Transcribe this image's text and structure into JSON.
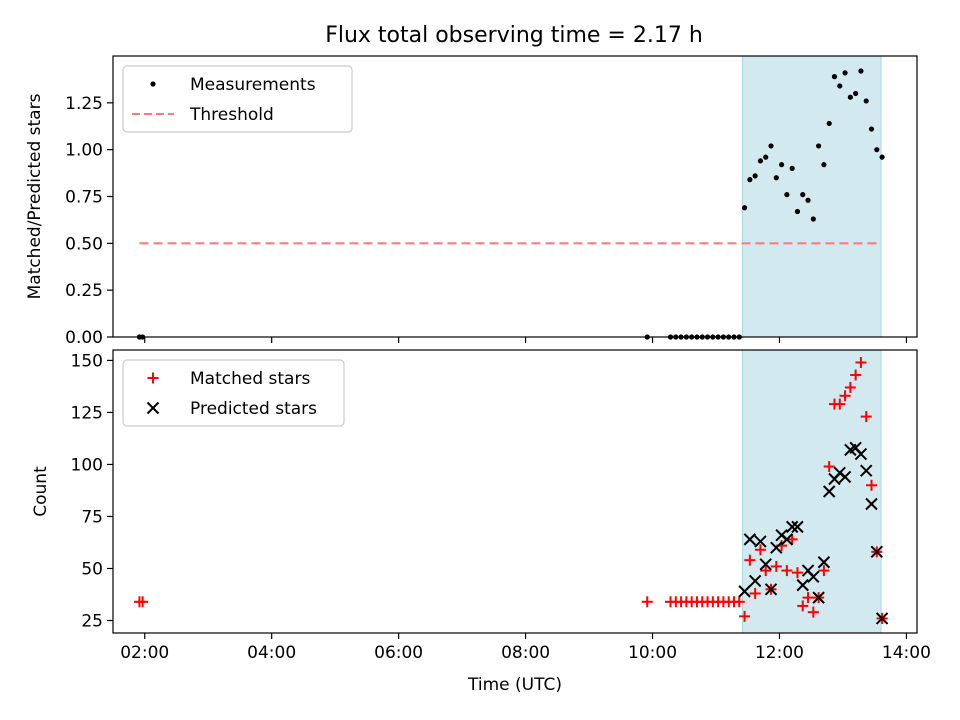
{
  "title": "Flux total observing time = 2.17 h",
  "colors": {
    "measurement": "#000000",
    "threshold": "#ff7b7b",
    "matched": "#ff0000",
    "predicted": "#000000",
    "shade_fill": "#d3e9f0",
    "shade_edge": "#a9d6e0"
  },
  "chart_data": [
    {
      "type": "scatter",
      "panel": "top",
      "xlabel": "",
      "ylabel": "Matched/Predicted stars",
      "xlim": [
        "01:30",
        "14:10"
      ],
      "ylim": [
        0,
        1.5
      ],
      "yticks": [
        "0.00",
        "0.25",
        "0.50",
        "0.75",
        "1.00",
        "1.25"
      ],
      "legend_position": "upper-left",
      "shaded_interval": [
        "11:25",
        "13:36"
      ],
      "threshold": {
        "name": "Threshold",
        "value": 0.5,
        "x_range": [
          "01:55",
          "13:36"
        ]
      },
      "series": [
        {
          "name": "Measurements",
          "marker": "dot",
          "x": [
            "01:55",
            "01:58",
            "09:55",
            "10:17",
            "10:22",
            "10:27",
            "10:32",
            "10:37",
            "10:42",
            "10:47",
            "10:52",
            "10:57",
            "11:02",
            "11:07",
            "11:12",
            "11:17",
            "11:22",
            "11:27",
            "11:32",
            "11:37",
            "11:42",
            "11:47",
            "11:52",
            "11:57",
            "12:02",
            "12:07",
            "12:12",
            "12:17",
            "12:22",
            "12:27",
            "12:32",
            "12:37",
            "12:42",
            "12:47",
            "12:52",
            "12:57",
            "13:02",
            "13:07",
            "13:12",
            "13:17",
            "13:22",
            "13:27",
            "13:32",
            "13:37"
          ],
          "y": [
            0,
            0,
            0,
            0,
            0,
            0,
            0,
            0,
            0,
            0,
            0,
            0,
            0,
            0,
            0,
            0,
            0,
            0.69,
            0.84,
            0.86,
            0.94,
            0.96,
            1.02,
            0.85,
            0.92,
            0.76,
            0.9,
            0.67,
            0.76,
            0.73,
            0.63,
            1.02,
            0.92,
            1.14,
            1.39,
            1.34,
            1.41,
            1.28,
            1.3,
            1.42,
            1.26,
            1.11,
            1.0,
            0.96
          ]
        }
      ]
    },
    {
      "type": "scatter",
      "panel": "bottom",
      "xlabel": "Time (UTC)",
      "ylabel": "Count",
      "xlim": [
        "01:30",
        "14:10"
      ],
      "ylim": [
        19,
        155
      ],
      "yticks": [
        "25",
        "50",
        "75",
        "100",
        "125",
        "150"
      ],
      "xticks": [
        "02:00",
        "04:00",
        "06:00",
        "08:00",
        "10:00",
        "12:00",
        "14:00"
      ],
      "legend_position": "upper-left",
      "shaded_interval": [
        "11:25",
        "13:36"
      ],
      "series": [
        {
          "name": "Matched stars",
          "marker": "plus",
          "x": [
            "01:55",
            "01:58",
            "09:55",
            "10:17",
            "10:22",
            "10:27",
            "10:32",
            "10:37",
            "10:42",
            "10:47",
            "10:52",
            "10:57",
            "11:02",
            "11:07",
            "11:12",
            "11:17",
            "11:22",
            "11:27",
            "11:32",
            "11:37",
            "11:42",
            "11:47",
            "11:52",
            "11:57",
            "12:02",
            "12:07",
            "12:12",
            "12:17",
            "12:22",
            "12:27",
            "12:32",
            "12:37",
            "12:42",
            "12:47",
            "12:52",
            "12:57",
            "13:02",
            "13:07",
            "13:12",
            "13:17",
            "13:22",
            "13:27",
            "13:32",
            "13:37"
          ],
          "y": [
            34,
            34,
            34,
            34,
            34,
            34,
            34,
            34,
            34,
            34,
            34,
            34,
            34,
            34,
            34,
            34,
            34,
            27,
            54,
            38,
            59,
            49,
            40,
            51,
            61,
            49,
            64,
            48,
            32,
            36,
            29,
            36,
            49,
            99,
            129,
            129,
            133,
            137,
            143,
            149,
            123,
            90,
            58,
            26
          ]
        },
        {
          "name": "Predicted stars",
          "marker": "x",
          "x": [
            "11:27",
            "11:32",
            "11:37",
            "11:42",
            "11:47",
            "11:52",
            "11:57",
            "12:02",
            "12:07",
            "12:12",
            "12:17",
            "12:22",
            "12:27",
            "12:32",
            "12:37",
            "12:42",
            "12:47",
            "12:52",
            "12:57",
            "13:02",
            "13:07",
            "13:12",
            "13:17",
            "13:22",
            "13:27",
            "13:32",
            "13:37"
          ],
          "y": [
            39,
            64,
            44,
            63,
            52,
            40,
            60,
            66,
            64,
            70,
            70,
            42,
            49,
            46,
            36,
            53,
            87,
            93,
            96,
            94,
            107,
            108,
            105,
            97,
            81,
            58,
            26
          ]
        }
      ]
    }
  ]
}
